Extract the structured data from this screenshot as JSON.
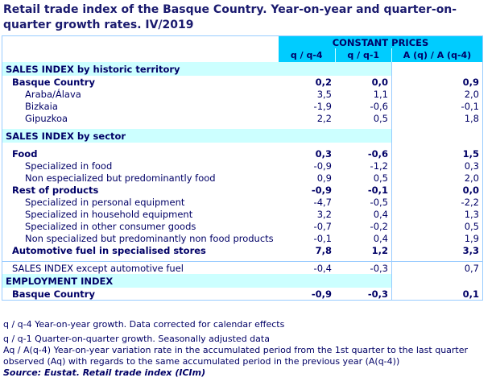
{
  "title": "Retail trade index of the Basque Country. Year-on-year and quarter-on-quarter growth rates. IV/2019",
  "header": {
    "group": "CONSTANT PRICES",
    "cols": [
      "q / q-4",
      "q / q-1",
      "A (q) / A (q-4)"
    ]
  },
  "sections": [
    {
      "title": "SALES INDEX by historic territory",
      "rows": [
        {
          "label": "Basque Country",
          "bold": true,
          "level": 1,
          "v": [
            "0,2",
            "0,0",
            "0,9"
          ]
        },
        {
          "label": "Araba/Álava",
          "level": 2,
          "v": [
            "3,5",
            "1,1",
            "2,0"
          ]
        },
        {
          "label": "Bizkaia",
          "level": 2,
          "v": [
            "-1,9",
            "-0,6",
            "-0,1"
          ]
        },
        {
          "label": "Gipuzkoa",
          "level": 2,
          "v": [
            "2,2",
            "0,5",
            "1,8"
          ]
        }
      ]
    },
    {
      "title": "SALES INDEX by sector",
      "rows": [
        {
          "label": "Food",
          "bold": true,
          "level": 1,
          "v": [
            "0,3",
            "-0,6",
            "1,5"
          ]
        },
        {
          "label": "Specialized in food",
          "level": 2,
          "v": [
            "-0,9",
            "-1,2",
            "0,3"
          ]
        },
        {
          "label": "Non especialized but predominantly food",
          "level": 2,
          "v": [
            "0,9",
            "0,5",
            "2,0"
          ]
        },
        {
          "label": "Rest of products",
          "bold": true,
          "level": 1,
          "v": [
            "-0,9",
            "-0,1",
            "0,0"
          ]
        },
        {
          "label": "Specialized in personal equipment",
          "level": 2,
          "v": [
            "-4,7",
            "-0,5",
            "-2,2"
          ]
        },
        {
          "label": "Specialized in household equipment",
          "level": 2,
          "v": [
            "3,2",
            "0,4",
            "1,3"
          ]
        },
        {
          "label": "Specialized in other consumer goods",
          "level": 2,
          "v": [
            "-0,7",
            "-0,2",
            "0,5"
          ]
        },
        {
          "label": "Non specialized but predominantly non food products",
          "level": 2,
          "v": [
            "-0,1",
            "0,4",
            "1,9"
          ]
        },
        {
          "label": "Automotive fuel in specialised stores",
          "bold": true,
          "level": 1,
          "v": [
            "7,8",
            "1,2",
            "3,3"
          ]
        }
      ]
    },
    {
      "title": "",
      "rows": [
        {
          "label": "SALES INDEX except automotive fuel",
          "level": 1,
          "v": [
            "-0,4",
            "-0,3",
            "0,7"
          ]
        }
      ]
    },
    {
      "title": "EMPLOYMENT INDEX",
      "rows": [
        {
          "label": "Basque Country",
          "bold": true,
          "level": 1,
          "v": [
            "-0,9",
            "-0,3",
            "0,1"
          ]
        }
      ]
    }
  ],
  "notes": [
    "q / q-4 Year-on-year growth. Data corrected for calendar effects",
    "q / q-1 Quarter-on-quarter growth. Seasonally adjusted data",
    "Aq / A(q-4) Year-on-year variation rate in the accumulated period from the 1st quarter to the last quarter observed (Aq) with regards to the same accumulated period in the previous year (A(q-4))"
  ],
  "source": "Source: Eustat. Retail trade index (ICIm)",
  "colors": {
    "header": "#00ccff",
    "section": "#ccffff",
    "border": "#99ccff",
    "text": "#000066"
  }
}
